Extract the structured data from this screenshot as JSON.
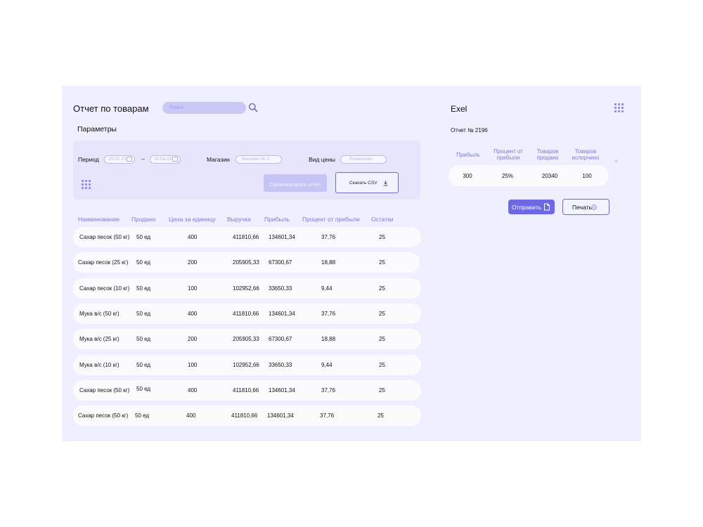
{
  "report": {
    "title": "Отчет по товарам",
    "search_placeholder": "Поиск",
    "params_title": "Параметры",
    "period_label": "Период",
    "date_from": "20.03.23",
    "period_separator": "–",
    "date_to": "20.04.23",
    "store_label": "Магазин",
    "store_value": "Магазин № 3",
    "price_type_label": "Вид цены",
    "price_type_value": "Розничная",
    "generate_button": "Сформировать отчет",
    "csv_button": "Скачать CSV"
  },
  "table": {
    "headers": [
      "Наименование",
      "Продано",
      "Цена за единицу",
      "Выручка",
      "Прибыль",
      "Процент от прибыли",
      "Остатки"
    ],
    "rows": [
      [
        "Сахар песок (50 кг)",
        "50 ед",
        "400",
        "411810,66",
        "134601,34",
        "37,76",
        "25"
      ],
      [
        "Сахар песок (25 кг)",
        "50 ед",
        "200",
        "205905,33",
        "67300,67",
        "18,88",
        "25"
      ],
      [
        "Сахар песок (10 кг)",
        "50 ед",
        "100",
        "102952,66",
        "33650,33",
        "9,44",
        "25"
      ],
      [
        "Мука в/с (50 кг)",
        "50 ед",
        "400",
        "411810,66",
        "134601,34",
        "37,76",
        "25"
      ],
      [
        "Мука в/с (25 кг)",
        "50 ед",
        "200",
        "205905,33",
        "67300,67",
        "18,88",
        "25"
      ],
      [
        "Мука в/с (10 кг)",
        "50 ед",
        "100",
        "102952,66",
        "33650,33",
        "9,44",
        "25"
      ],
      [
        "Сахар песок (50 кг)",
        "50 ед",
        "400",
        "411810,66",
        "134601,34",
        "37,76",
        "25"
      ],
      [
        "Сахар песок (50 кг)",
        "50 ед",
        "400",
        "411810,66",
        "134601,34",
        "37,76",
        "25"
      ]
    ]
  },
  "export": {
    "title": "Exel",
    "report_number": "Отчет № 2196",
    "headers": [
      "Прибыль",
      "Процент от прибыли",
      "Товаров продано",
      "Товаров испорчено"
    ],
    "values": [
      "300",
      "25%",
      "20340",
      "100"
    ],
    "add_symbol": "+",
    "send_button": "Отправить",
    "print_button": "Печать"
  }
}
